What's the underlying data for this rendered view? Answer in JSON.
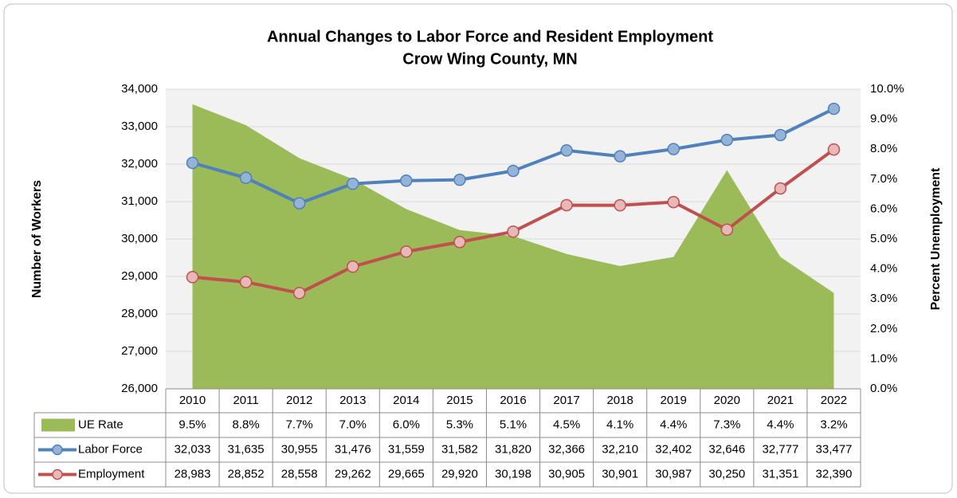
{
  "chart_data": {
    "type": "line",
    "title": "Annual Changes to Labor Force and Resident Employment",
    "subtitle": "Crow Wing County, MN",
    "y_label": "Number of Workers",
    "y2_label": "Percent Unemployment",
    "categories": [
      "2010",
      "2011",
      "2012",
      "2013",
      "2014",
      "2015",
      "2016",
      "2017",
      "2018",
      "2019",
      "2020",
      "2021",
      "2022"
    ],
    "ylim": [
      26000,
      34000
    ],
    "yticks": [
      {
        "value": 26000,
        "label": "26,000"
      },
      {
        "value": 27000,
        "label": "27,000"
      },
      {
        "value": 28000,
        "label": "28,000"
      },
      {
        "value": 29000,
        "label": "29,000"
      },
      {
        "value": 30000,
        "label": "30,000"
      },
      {
        "value": 31000,
        "label": "31,000"
      },
      {
        "value": 32000,
        "label": "32,000"
      },
      {
        "value": 33000,
        "label": "33,000"
      },
      {
        "value": 34000,
        "label": "34,000"
      }
    ],
    "y2lim": [
      0,
      10
    ],
    "y2ticks": [
      {
        "value": 0,
        "label": "0.0%"
      },
      {
        "value": 1,
        "label": "1.0%"
      },
      {
        "value": 2,
        "label": "2.0%"
      },
      {
        "value": 3,
        "label": "3.0%"
      },
      {
        "value": 4,
        "label": "4.0%"
      },
      {
        "value": 5,
        "label": "5.0%"
      },
      {
        "value": 6,
        "label": "6.0%"
      },
      {
        "value": 7,
        "label": "7.0%"
      },
      {
        "value": 8,
        "label": "8.0%"
      },
      {
        "value": 9,
        "label": "9.0%"
      },
      {
        "value": 10,
        "label": "10.0%"
      }
    ],
    "grid": true,
    "series": [
      {
        "name": "UE Rate",
        "type": "area",
        "axis": "y2",
        "color": "#9bbb59",
        "values": [
          9.5,
          8.8,
          7.7,
          7.0,
          6.0,
          5.3,
          5.1,
          4.5,
          4.1,
          4.4,
          7.3,
          4.4,
          3.2
        ],
        "value_labels": [
          "9.5%",
          "8.8%",
          "7.7%",
          "7.0%",
          "6.0%",
          "5.3%",
          "5.1%",
          "4.5%",
          "4.1%",
          "4.4%",
          "7.3%",
          "4.4%",
          "3.2%"
        ]
      },
      {
        "name": "Labor Force",
        "type": "line",
        "color": "#4f81bd",
        "marker_color": "#95b3d7",
        "values": [
          32033,
          31635,
          30955,
          31476,
          31559,
          31582,
          31820,
          32366,
          32210,
          32402,
          32646,
          32777,
          33477
        ],
        "value_labels": [
          "32,033",
          "31,635",
          "30,955",
          "31,476",
          "31,559",
          "31,582",
          "31,820",
          "32,366",
          "32,210",
          "32,402",
          "32,646",
          "32,777",
          "33,477"
        ]
      },
      {
        "name": "Employment",
        "type": "line",
        "color": "#c0504d",
        "marker_color": "#e6b9b8",
        "values": [
          28983,
          28852,
          28558,
          29262,
          29665,
          29920,
          30198,
          30905,
          30901,
          30987,
          30250,
          31351,
          32390
        ],
        "value_labels": [
          "28,983",
          "28,852",
          "28,558",
          "29,262",
          "29,665",
          "29,920",
          "30,198",
          "30,905",
          "30,901",
          "30,987",
          "30,250",
          "31,351",
          "32,390"
        ]
      }
    ]
  }
}
